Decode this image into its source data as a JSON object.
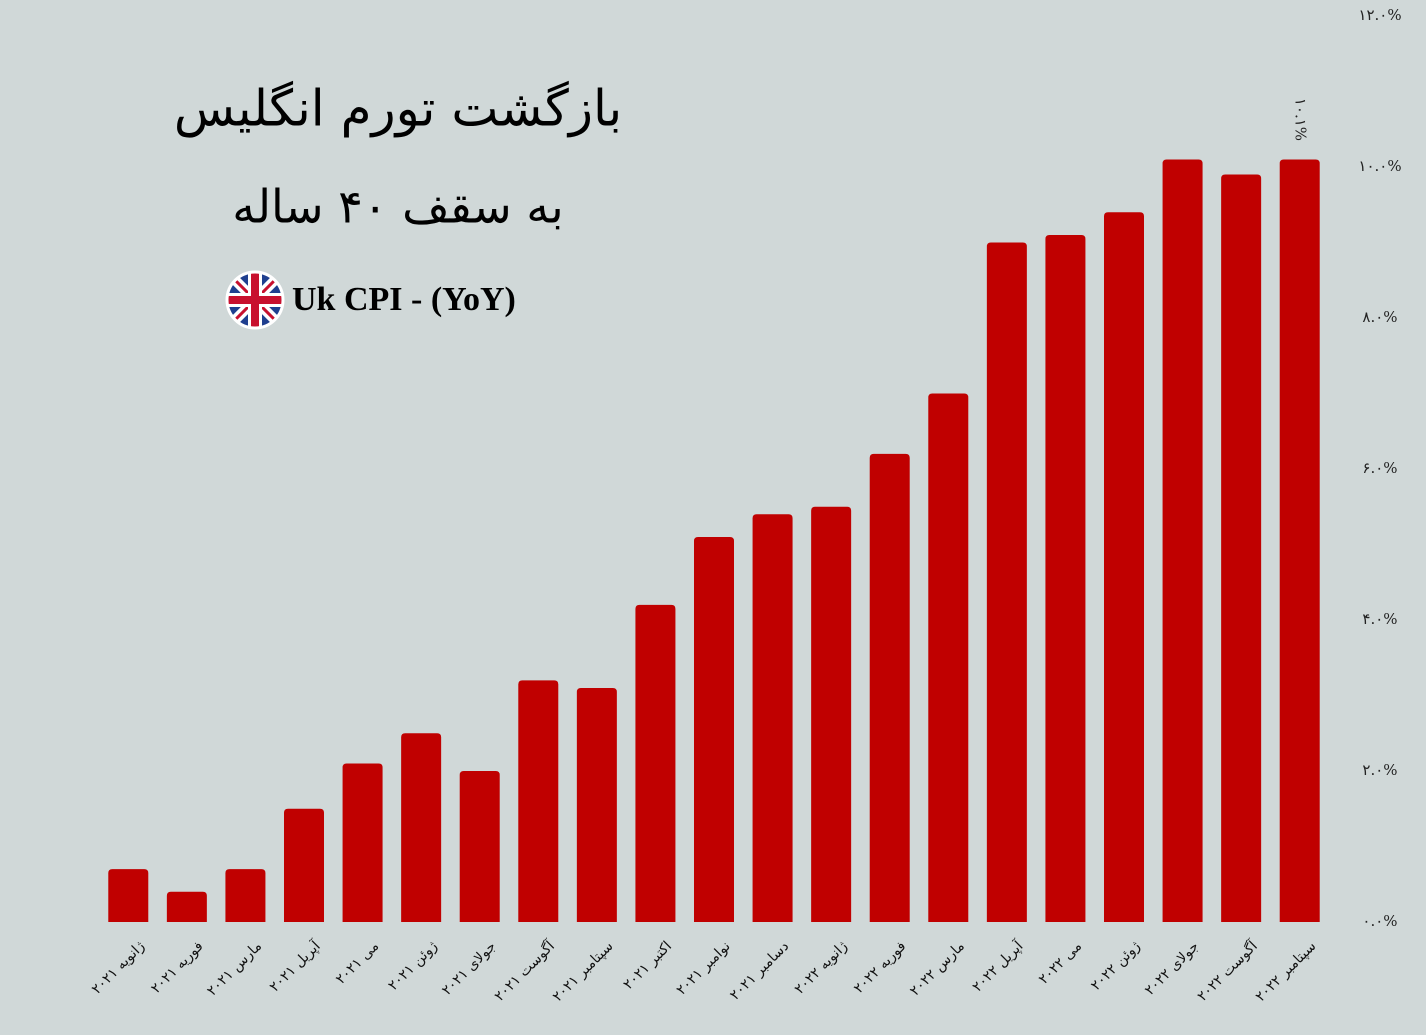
{
  "chart_data": {
    "type": "bar",
    "title": "بازگشت تورم انگلیس",
    "subtitle": "به سقف ۴۰ ساله",
    "series_label": "Uk CPI - (YoY)",
    "categories": [
      "ژانویه ۲۰۲۱",
      "فوریه ۲۰۲۱",
      "مارس ۲۰۲۱",
      "آپریل ۲۰۲۱",
      "می ۲۰۲۱",
      "ژوئن ۲۰۲۱",
      "جولای ۲۰۲۱",
      "آگوست ۲۰۲۱",
      "سپتامبر ۲۰۲۱",
      "اکتبر ۲۰۲۱",
      "نوامبر ۲۰۲۱",
      "دسامبر ۲۰۲۱",
      "ژانویه ۲۰۲۲",
      "فوریه ۲۰۲۲",
      "مارس ۲۰۲۲",
      "آپریل ۲۰۲۲",
      "می ۲۰۲۲",
      "ژوئن ۲۰۲۲",
      "جولای ۲۰۲۲",
      "آگوست ۲۰۲۲",
      "سپتامبر ۲۰۲۲"
    ],
    "values": [
      0.7,
      0.4,
      0.7,
      1.5,
      2.1,
      2.5,
      2.0,
      3.2,
      3.1,
      4.2,
      5.1,
      5.4,
      5.5,
      6.2,
      7.0,
      9.0,
      9.1,
      9.4,
      10.1,
      9.9,
      10.1
    ],
    "value_labels": [
      null,
      null,
      null,
      null,
      null,
      null,
      null,
      null,
      null,
      null,
      null,
      null,
      null,
      null,
      null,
      null,
      null,
      null,
      null,
      null,
      "۱۰.۱%"
    ],
    "color": "#c00000",
    "ylim": [
      0,
      12
    ],
    "yticks": [
      {
        "value": 0,
        "label": "۰.۰%"
      },
      {
        "value": 2,
        "label": "۲.۰%"
      },
      {
        "value": 4,
        "label": "۴.۰%"
      },
      {
        "value": 6,
        "label": "۶.۰%"
      },
      {
        "value": 8,
        "label": "۸.۰%"
      },
      {
        "value": 10,
        "label": "۱۰.۰%"
      },
      {
        "value": 12,
        "label": "۱۲.۰%"
      }
    ],
    "grid": false
  }
}
